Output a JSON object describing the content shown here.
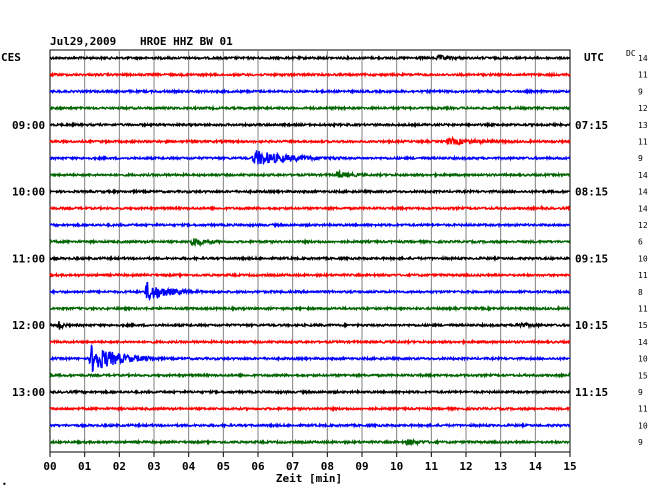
{
  "header": {
    "date": "Jul29,2009",
    "station": "HROE HHZ BW 01",
    "left_tz": "CES",
    "right_tz": "UTC",
    "dc_label": "DC"
  },
  "chart_data": {
    "type": "line",
    "title": "Jul29,2009    HROE HHZ BW 01",
    "xlabel": "Zeit [min]",
    "xlim": [
      0,
      15
    ],
    "x_ticks": [
      "00",
      "01",
      "02",
      "03",
      "04",
      "05",
      "06",
      "07",
      "08",
      "09",
      "10",
      "11",
      "12",
      "13",
      "14",
      "15"
    ],
    "trace_colors": [
      "#000000",
      "#ff0000",
      "#0000ff",
      "#006400"
    ],
    "left_hour_labels": [
      {
        "row": 4,
        "label": "09:00"
      },
      {
        "row": 8,
        "label": "10:00"
      },
      {
        "row": 12,
        "label": "11:00"
      },
      {
        "row": 16,
        "label": "12:00"
      },
      {
        "row": 20,
        "label": "13:00"
      }
    ],
    "right_utc_labels": [
      {
        "row": 4,
        "label": "07:15"
      },
      {
        "row": 8,
        "label": "08:15"
      },
      {
        "row": 12,
        "label": "09:15"
      },
      {
        "row": 16,
        "label": "10:15"
      },
      {
        "row": 20,
        "label": "11:15"
      }
    ],
    "dc_offsets": [
      "14",
      "11",
      "9",
      "12",
      "13",
      "11",
      "9",
      "14",
      "14",
      "14",
      "12",
      "6",
      "10",
      "11",
      "8",
      "11",
      "15",
      "14",
      "10",
      "15",
      "9",
      "11",
      "10",
      "9"
    ],
    "events": [
      {
        "row": 0,
        "minute": 11.2,
        "amplitude": 0.25,
        "duration_min": 0.8
      },
      {
        "row": 5,
        "minute": 11.5,
        "amplitude": 0.35,
        "duration_min": 2.0
      },
      {
        "row": 6,
        "minute": 5.9,
        "amplitude": 0.9,
        "duration_min": 2.5
      },
      {
        "row": 7,
        "minute": 8.3,
        "amplitude": 0.4,
        "duration_min": 0.8
      },
      {
        "row": 11,
        "minute": 4.1,
        "amplitude": 0.55,
        "duration_min": 0.9
      },
      {
        "row": 14,
        "minute": 2.8,
        "amplitude": 1.1,
        "duration_min": 1.6
      },
      {
        "row": 16,
        "minute": 0.25,
        "amplitude": 0.6,
        "duration_min": 0.3
      },
      {
        "row": 16,
        "minute": 13.5,
        "amplitude": 0.3,
        "duration_min": 0.7
      },
      {
        "row": 18,
        "minute": 1.2,
        "amplitude": 1.7,
        "duration_min": 2.0
      },
      {
        "row": 23,
        "minute": 10.3,
        "amplitude": 0.3,
        "duration_min": 0.9
      }
    ]
  }
}
